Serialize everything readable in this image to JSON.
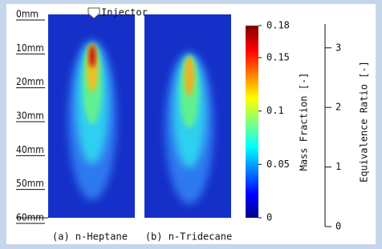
{
  "figure": {
    "annotation": "Injector",
    "depth_lim": [
      0,
      60
    ],
    "depth_ticks": [
      {
        "value": 0,
        "label": "0mm"
      },
      {
        "value": 10,
        "label": "10mm"
      },
      {
        "value": 20,
        "label": "20mm"
      },
      {
        "value": 30,
        "label": "30mm"
      },
      {
        "value": 40,
        "label": "40mm"
      },
      {
        "value": 50,
        "label": "50mm"
      },
      {
        "value": 60,
        "label": "60mm"
      }
    ],
    "panels": [
      {
        "label": "(a) n-Heptane"
      },
      {
        "label": "(b) n-Tridecane"
      }
    ],
    "colorbar": {
      "label": "Mass Fraction [-]",
      "lim": [
        0,
        0.18
      ],
      "ticks": [
        0,
        0.05,
        0.1,
        0.15,
        0.18
      ]
    },
    "ratio_axis": {
      "label": "Equivalence Ratio [-]",
      "lim": [
        0,
        3.4
      ],
      "ticks": [
        0,
        1,
        2,
        3
      ]
    }
  }
}
